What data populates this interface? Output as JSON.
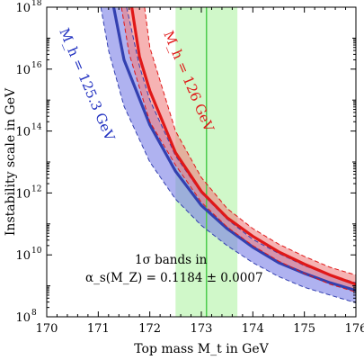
{
  "chart_data": {
    "type": "line",
    "xlabel": "Top mass M_t in GeV",
    "ylabel": "Instability scale in GeV",
    "xlim": [
      170,
      176
    ],
    "ylim_log10": [
      8,
      18
    ],
    "y_scale": "log",
    "grid": false,
    "x_ticks": [
      "170",
      "171",
      "172",
      "173",
      "174",
      "175",
      "176"
    ],
    "y_ticks": [
      {
        "base": "10",
        "exp": "8"
      },
      {
        "base": "10",
        "exp": "10"
      },
      {
        "base": "10",
        "exp": "12"
      },
      {
        "base": "10",
        "exp": "14"
      },
      {
        "base": "10",
        "exp": "16"
      },
      {
        "base": "10",
        "exp": "18"
      }
    ],
    "top_mass_band": {
      "center": 173.1,
      "low": 172.5,
      "high": 173.7,
      "color": "#c8f7c0",
      "line_color": "#4ccc4c"
    },
    "annotation": {
      "line1": "1σ bands in",
      "line2": "α_s(M_Z) = 0.1184 ± 0.0007"
    },
    "series": [
      {
        "name": "M_h = 125.3 GeV",
        "line_color": "#3340b0",
        "band_color": "#7a7fe6",
        "x": [
          171.3,
          171.5,
          172.0,
          172.5,
          173.0,
          173.5,
          174.0,
          174.5,
          175.0,
          175.5,
          176.0
        ],
        "log10y": [
          18.0,
          16.3,
          14.2,
          12.7,
          11.6,
          10.85,
          10.25,
          9.75,
          9.4,
          9.1,
          8.85
        ],
        "x_low": [
          171.05,
          171.2,
          171.5,
          172.0,
          172.5,
          173.0,
          173.5,
          174.0,
          174.5,
          175.0,
          175.5,
          176.0
        ],
        "log10y_low": [
          18.0,
          16.6,
          14.8,
          13.0,
          11.8,
          10.95,
          10.3,
          9.75,
          9.3,
          8.95,
          8.7,
          8.45
        ],
        "x_high": [
          171.55,
          171.8,
          172.0,
          172.5,
          173.0,
          173.5,
          174.0,
          174.5,
          175.0,
          175.5,
          176.0
        ],
        "log10y_high": [
          18.0,
          16.1,
          15.0,
          13.2,
          12.0,
          11.15,
          10.5,
          10.05,
          9.65,
          9.35,
          9.1
        ]
      },
      {
        "name": "M_h = 126 GeV",
        "line_color": "#e01818",
        "band_color": "#f08080",
        "x": [
          171.65,
          171.8,
          172.0,
          172.5,
          173.0,
          173.5,
          174.0,
          174.5,
          175.0,
          175.5,
          176.0
        ],
        "log10y": [
          18.0,
          16.4,
          15.3,
          13.3,
          12.05,
          11.2,
          10.6,
          10.1,
          9.7,
          9.35,
          9.05
        ],
        "x_low": [
          171.45,
          171.6,
          172.0,
          172.5,
          173.0,
          173.5,
          174.0,
          174.5,
          175.0,
          175.5,
          176.0
        ],
        "log10y_low": [
          18.0,
          16.5,
          14.3,
          12.9,
          11.7,
          10.9,
          10.3,
          9.8,
          9.4,
          9.05,
          8.8
        ],
        "x_high": [
          171.9,
          172.0,
          172.5,
          173.0,
          173.5,
          174.0,
          174.5,
          175.0,
          175.5,
          176.0
        ],
        "log10y_high": [
          18.0,
          16.7,
          14.0,
          12.5,
          11.5,
          10.85,
          10.35,
          9.95,
          9.6,
          9.35
        ]
      }
    ]
  }
}
